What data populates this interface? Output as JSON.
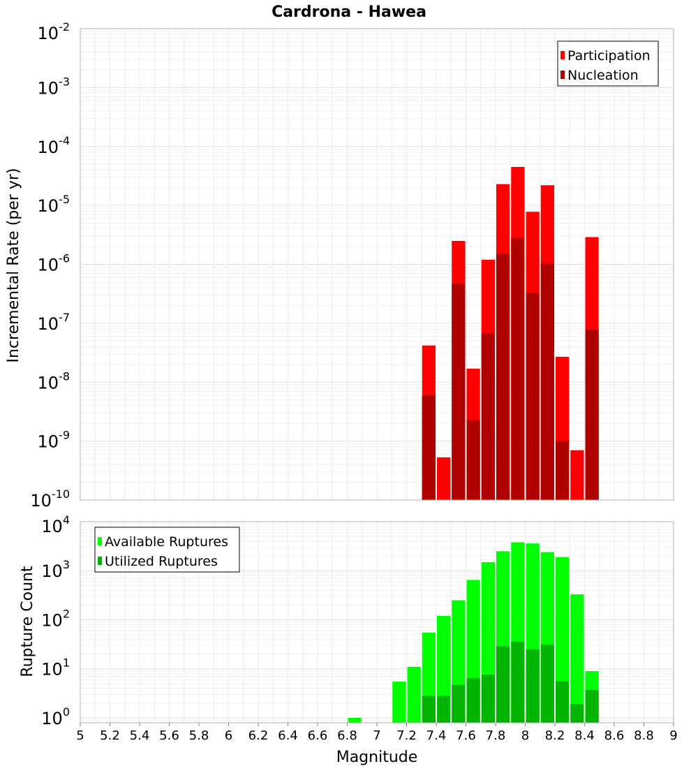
{
  "title": "Cardrona - Hawea",
  "xlabel": "Magnitude",
  "x_range": [
    5,
    9
  ],
  "x_ticks": [
    "5",
    "5.2",
    "5.4",
    "5.6",
    "5.8",
    "6",
    "6.2",
    "6.4",
    "6.6",
    "6.8",
    "7",
    "7.2",
    "7.4",
    "7.6",
    "7.8",
    "8",
    "8.2",
    "8.4",
    "8.6",
    "8.8",
    "9"
  ],
  "chart_data": [
    {
      "type": "bar",
      "scale": "log",
      "ylabel": "Incremental Rate (per yr)",
      "ylim_exponents": [
        -10,
        -2
      ],
      "y_tick_exponents": [
        "-2",
        "-3",
        "-4",
        "-5",
        "-6",
        "-7",
        "-8",
        "-9",
        "-10"
      ],
      "legend": {
        "position": "top-right",
        "entries": [
          "Participation",
          "Nucleation"
        ]
      },
      "x": [
        7.35,
        7.45,
        7.55,
        7.65,
        7.75,
        7.85,
        7.95,
        8.05,
        8.15,
        8.25,
        8.35,
        8.45
      ],
      "series": [
        {
          "name": "Participation",
          "color": "#ff0000",
          "values": [
            4.2e-08,
            5.3e-10,
            2.5e-06,
            1.7e-08,
            1.2e-06,
            2.3e-05,
            4.5e-05,
            7.8e-06,
            2.2e-05,
            2.7e-08,
            7e-10,
            2.9e-06
          ]
        },
        {
          "name": "Nucleation",
          "color": "#b00000",
          "values": [
            6e-09,
            0,
            4.7e-07,
            2.3e-09,
            6.7e-08,
            1.5e-06,
            2.8e-06,
            3.3e-07,
            1.04e-06,
            1e-09,
            0,
            7.8e-08
          ]
        }
      ]
    },
    {
      "type": "bar",
      "scale": "log",
      "ylabel": "Rupture Count",
      "ylim_exponents": [
        -0.1,
        4
      ],
      "y_tick_exponents": [
        "4",
        "3",
        "2",
        "1",
        "0"
      ],
      "legend": {
        "position": "top-left",
        "entries": [
          "Available Ruptures",
          "Utilized Ruptures"
        ]
      },
      "x": [
        6.85,
        7.15,
        7.25,
        7.35,
        7.45,
        7.55,
        7.65,
        7.75,
        7.85,
        7.95,
        8.05,
        8.15,
        8.25,
        8.35,
        8.45
      ],
      "series": [
        {
          "name": "Available Ruptures",
          "color": "#00ff00",
          "values": [
            1,
            5.5,
            11,
            55,
            120,
            250,
            650,
            1500,
            2500,
            3800,
            3600,
            2400,
            1900,
            330,
            9
          ]
        },
        {
          "name": "Utilized Ruptures",
          "color": "#00b400",
          "values": [
            0,
            0,
            0,
            2.8,
            2.8,
            4.7,
            6.5,
            7.6,
            29,
            36,
            25,
            31,
            5.6,
            1.9,
            3.7
          ]
        }
      ]
    }
  ]
}
